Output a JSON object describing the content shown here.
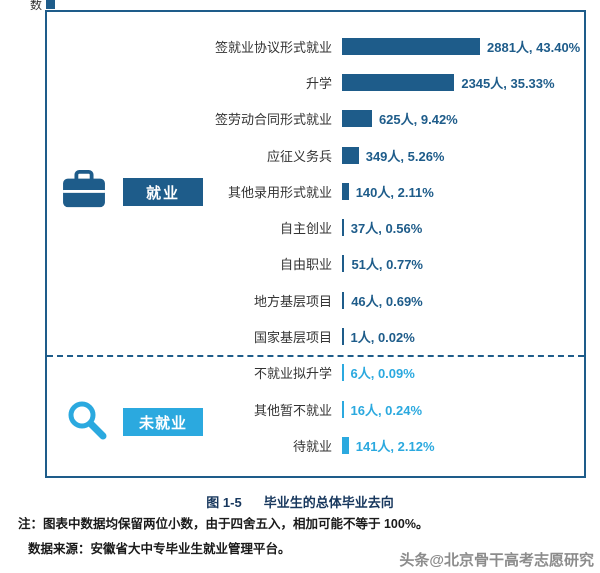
{
  "figure": {
    "caption_prefix": "图 1-5",
    "caption_title": "毕业生的总体毕业去向",
    "note_line1": "注：图表中数据均保留两位小数，由于四舍五入，相加可能不等于 100%。",
    "note_line2": "数据来源：安徽省大中专毕业生就业管理平台。",
    "watermark": "头条@北京骨干高考志愿研究",
    "top_fragment_text": "数"
  },
  "groups": [
    {
      "label": "就业",
      "icon": "briefcase-icon",
      "color": "#1E5C8A"
    },
    {
      "label": "未就业",
      "icon": "magnifier-icon",
      "color": "#2BA9DF"
    }
  ],
  "chart_data": {
    "type": "bar",
    "orientation": "horizontal",
    "title": "毕业生的总体毕业去向",
    "unit": "人",
    "value_axis": "percent",
    "value_range": [
      0,
      43.4
    ],
    "grid": false,
    "legend_position": "left-groups",
    "series": [
      {
        "name": "就业",
        "color": "#1E5C8A",
        "items": [
          {
            "label": "签就业协议形式就业",
            "count": 2881,
            "percent": 43.4,
            "value_text": "2881人, 43.40%"
          },
          {
            "label": "升学",
            "count": 2345,
            "percent": 35.33,
            "value_text": "2345人, 35.33%"
          },
          {
            "label": "签劳动合同形式就业",
            "count": 625,
            "percent": 9.42,
            "value_text": "625人, 9.42%"
          },
          {
            "label": "应征义务兵",
            "count": 349,
            "percent": 5.26,
            "value_text": "349人, 5.26%"
          },
          {
            "label": "其他录用形式就业",
            "count": 140,
            "percent": 2.11,
            "value_text": "140人, 2.11%"
          },
          {
            "label": "自主创业",
            "count": 37,
            "percent": 0.56,
            "value_text": "37人, 0.56%"
          },
          {
            "label": "自由职业",
            "count": 51,
            "percent": 0.77,
            "value_text": "51人, 0.77%"
          },
          {
            "label": "地方基层项目",
            "count": 46,
            "percent": 0.69,
            "value_text": "46人, 0.69%"
          },
          {
            "label": "国家基层项目",
            "count": 1,
            "percent": 0.02,
            "value_text": "1人, 0.02%"
          }
        ]
      },
      {
        "name": "未就业",
        "color": "#2BA9DF",
        "items": [
          {
            "label": "不就业拟升学",
            "count": 6,
            "percent": 0.09,
            "value_text": "6人, 0.09%"
          },
          {
            "label": "其他暂不就业",
            "count": 16,
            "percent": 0.24,
            "value_text": "16人, 0.24%"
          },
          {
            "label": "待就业",
            "count": 141,
            "percent": 2.12,
            "value_text": "141人, 2.12%"
          }
        ]
      }
    ]
  }
}
